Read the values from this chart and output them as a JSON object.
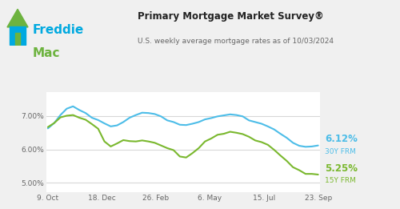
{
  "title": "Primary Mortgage Market Survey®",
  "subtitle": "U.S. weekly average mortgage rates as of 10/03/2024",
  "bg_color": "#f0f0f0",
  "plot_bg_color": "#ffffff",
  "header_bg": "#f0f0f0",
  "line30_color": "#4dbde8",
  "line15_color": "#7ab82e",
  "freddie_blue": "#00a9e0",
  "freddie_green": "#6db33f",
  "label30": "6.12%",
  "label30_sub": "30Y FRM",
  "label15": "5.25%",
  "label15_sub": "15Y FRM",
  "yticks": [
    5.0,
    6.0,
    7.0
  ],
  "ytick_labels": [
    "5.00%",
    "6.00%",
    "7.00%"
  ],
  "xtick_labels": [
    "9. Oct",
    "18. Dec",
    "26. Feb",
    "6. May",
    "15. Jul",
    "23. Sep"
  ],
  "ylim": [
    4.72,
    7.72
  ],
  "rate30": [
    6.63,
    6.79,
    7.03,
    7.22,
    7.29,
    7.18,
    7.09,
    6.95,
    6.88,
    6.78,
    6.69,
    6.72,
    6.82,
    6.95,
    7.03,
    7.1,
    7.09,
    7.06,
    6.99,
    6.87,
    6.82,
    6.74,
    6.73,
    6.77,
    6.82,
    6.9,
    6.94,
    6.99,
    7.02,
    7.05,
    7.03,
    6.99,
    6.87,
    6.82,
    6.77,
    6.69,
    6.6,
    6.47,
    6.35,
    6.2,
    6.11,
    6.08,
    6.09,
    6.12
  ],
  "rate15": [
    6.67,
    6.79,
    6.96,
    7.01,
    7.03,
    6.95,
    6.89,
    6.76,
    6.62,
    6.24,
    6.09,
    6.18,
    6.28,
    6.25,
    6.24,
    6.27,
    6.24,
    6.2,
    6.12,
    6.04,
    5.98,
    5.79,
    5.76,
    5.89,
    6.04,
    6.24,
    6.33,
    6.44,
    6.47,
    6.53,
    6.5,
    6.46,
    6.38,
    6.27,
    6.22,
    6.14,
    5.99,
    5.82,
    5.66,
    5.47,
    5.38,
    5.27,
    5.27,
    5.25
  ],
  "grid_color": "#d8d8d8",
  "tick_color": "#666666"
}
